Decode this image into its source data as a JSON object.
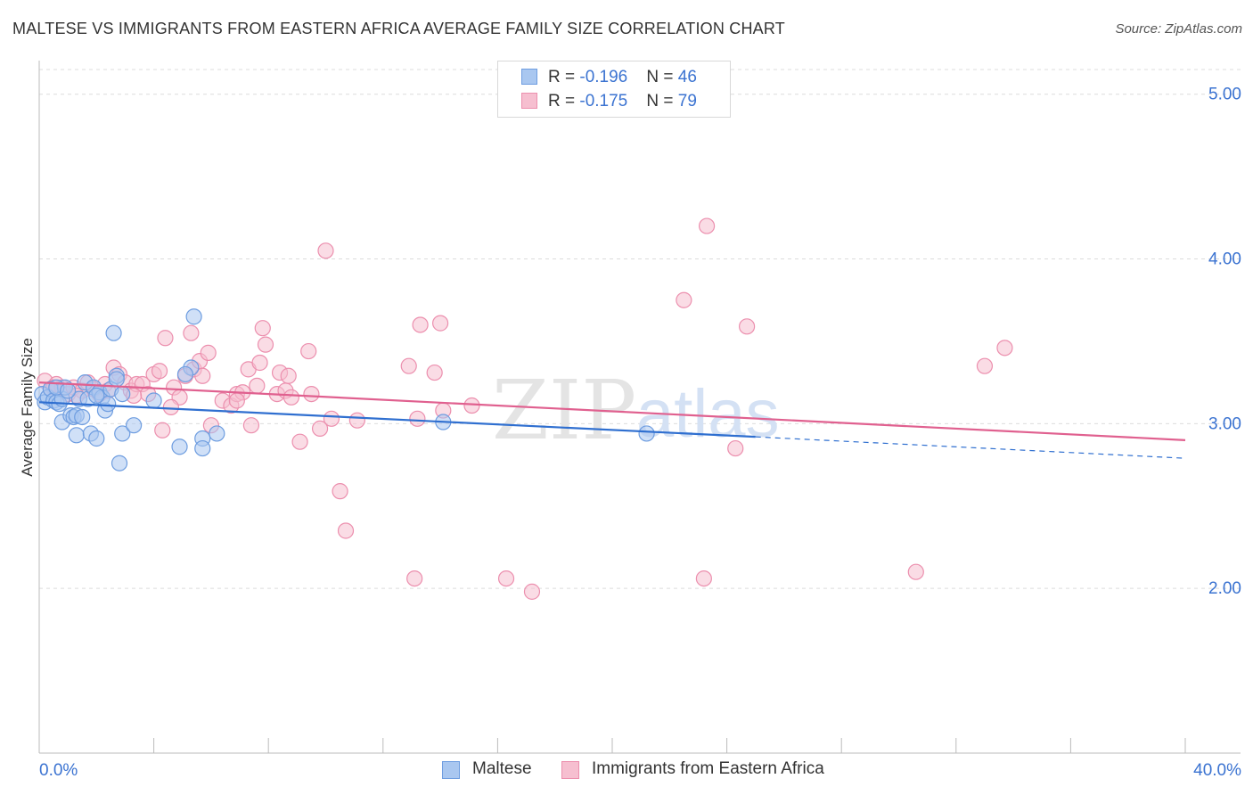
{
  "title": "MALTESE VS IMMIGRANTS FROM EASTERN AFRICA AVERAGE FAMILY SIZE CORRELATION CHART",
  "source": "Source: ZipAtlas.com",
  "legend": {
    "rows": [
      {
        "r_label": "R = ",
        "r_value": "-0.196",
        "n_label": "N = ",
        "n_value": "46"
      },
      {
        "r_label": "R = ",
        "r_value": "-0.175",
        "n_label": "N = ",
        "n_value": "79"
      }
    ]
  },
  "watermark": {
    "zip": "ZIP",
    "atlas": "atlas"
  },
  "colors": {
    "maltese_fill": "#a9c7f0",
    "maltese_stroke": "#6e9de0",
    "maltese_line": "#2f6fd0",
    "eafrica_fill": "#f6bfd0",
    "eafrica_stroke": "#ec8fae",
    "eafrica_line": "#e0608f",
    "axis_text": "#3b73d1",
    "grid": "#dcdcdc"
  },
  "chart_data": {
    "type": "scatter",
    "title": "MALTESE VS IMMIGRANTS FROM EASTERN AFRICA AVERAGE FAMILY SIZE CORRELATION CHART",
    "xlabel": "",
    "ylabel": "Average Family Size",
    "x_unit": "percent",
    "xlim": [
      0,
      40
    ],
    "ylim": [
      1.0,
      5.15
    ],
    "x_tick_labels": [
      "0.0%",
      "40.0%"
    ],
    "y_ticks": [
      2.0,
      3.0,
      4.0,
      5.0
    ],
    "y_tick_labels": [
      "2.00",
      "3.00",
      "4.00",
      "5.00"
    ],
    "grid": "horizontal dashed",
    "legend_position": "top-center and bottom",
    "series": [
      {
        "name": "Maltese",
        "r": -0.196,
        "n": 46,
        "trend": {
          "x0": 0,
          "y0": 3.13,
          "x1": 25,
          "y1": 2.92,
          "dashed_to_x": 40,
          "dashed_to_y": 2.79
        },
        "points": [
          [
            0.1,
            3.18
          ],
          [
            0.2,
            3.13
          ],
          [
            0.3,
            3.16
          ],
          [
            0.4,
            3.21
          ],
          [
            0.5,
            3.14
          ],
          [
            0.6,
            3.13
          ],
          [
            0.7,
            3.12
          ],
          [
            0.8,
            3.15
          ],
          [
            0.8,
            3.01
          ],
          [
            0.9,
            3.22
          ],
          [
            1.1,
            3.05
          ],
          [
            1.2,
            3.04
          ],
          [
            1.3,
            3.05
          ],
          [
            1.3,
            2.93
          ],
          [
            1.4,
            3.15
          ],
          [
            1.5,
            3.04
          ],
          [
            1.6,
            3.25
          ],
          [
            1.7,
            3.15
          ],
          [
            1.8,
            2.94
          ],
          [
            1.9,
            3.22
          ],
          [
            2.0,
            2.91
          ],
          [
            2.1,
            3.19
          ],
          [
            2.2,
            3.16
          ],
          [
            2.3,
            3.08
          ],
          [
            2.4,
            3.12
          ],
          [
            2.5,
            3.21
          ],
          [
            2.6,
            3.55
          ],
          [
            2.7,
            3.29
          ],
          [
            2.7,
            3.27
          ],
          [
            2.8,
            2.76
          ],
          [
            2.9,
            3.18
          ],
          [
            2.9,
            2.94
          ],
          [
            3.3,
            2.99
          ],
          [
            4.0,
            3.14
          ],
          [
            4.9,
            2.86
          ],
          [
            5.3,
            3.34
          ],
          [
            5.1,
            3.3
          ],
          [
            5.4,
            3.65
          ],
          [
            5.7,
            2.91
          ],
          [
            5.7,
            2.85
          ],
          [
            6.2,
            2.94
          ],
          [
            14.1,
            3.01
          ],
          [
            21.2,
            2.94
          ],
          [
            0.6,
            3.22
          ],
          [
            1.0,
            3.2
          ],
          [
            2.0,
            3.17
          ]
        ]
      },
      {
        "name": "Immigrants from Eastern Africa",
        "r": -0.175,
        "n": 79,
        "trend": {
          "x0": 0,
          "y0": 3.25,
          "x1": 40,
          "y1": 2.9
        },
        "points": [
          [
            0.2,
            3.26
          ],
          [
            0.4,
            3.21
          ],
          [
            0.6,
            3.24
          ],
          [
            0.8,
            3.22
          ],
          [
            1.0,
            3.18
          ],
          [
            1.2,
            3.22
          ],
          [
            1.5,
            3.2
          ],
          [
            1.7,
            3.25
          ],
          [
            1.9,
            3.21
          ],
          [
            2.1,
            3.18
          ],
          [
            2.3,
            3.24
          ],
          [
            2.6,
            3.34
          ],
          [
            2.8,
            3.3
          ],
          [
            3.0,
            3.25
          ],
          [
            3.2,
            3.2
          ],
          [
            3.4,
            3.24
          ],
          [
            3.6,
            3.24
          ],
          [
            3.8,
            3.18
          ],
          [
            4.0,
            3.3
          ],
          [
            4.2,
            3.32
          ],
          [
            4.3,
            2.96
          ],
          [
            4.4,
            3.52
          ],
          [
            4.7,
            3.22
          ],
          [
            4.9,
            3.16
          ],
          [
            5.1,
            3.29
          ],
          [
            5.3,
            3.55
          ],
          [
            5.4,
            3.33
          ],
          [
            5.6,
            3.38
          ],
          [
            5.7,
            3.29
          ],
          [
            5.9,
            3.43
          ],
          [
            6.0,
            2.99
          ],
          [
            6.4,
            3.14
          ],
          [
            6.7,
            3.11
          ],
          [
            6.9,
            3.18
          ],
          [
            7.1,
            3.19
          ],
          [
            7.3,
            3.33
          ],
          [
            7.4,
            2.99
          ],
          [
            7.6,
            3.23
          ],
          [
            7.7,
            3.37
          ],
          [
            7.8,
            3.58
          ],
          [
            7.9,
            3.48
          ],
          [
            8.3,
            3.18
          ],
          [
            8.4,
            3.31
          ],
          [
            8.6,
            3.2
          ],
          [
            8.7,
            3.29
          ],
          [
            8.8,
            3.16
          ],
          [
            9.1,
            2.89
          ],
          [
            9.4,
            3.44
          ],
          [
            9.5,
            3.18
          ],
          [
            9.8,
            2.97
          ],
          [
            10.0,
            4.05
          ],
          [
            10.2,
            3.03
          ],
          [
            10.5,
            2.59
          ],
          [
            10.7,
            2.35
          ],
          [
            11.1,
            3.02
          ],
          [
            12.9,
            3.35
          ],
          [
            13.1,
            2.06
          ],
          [
            13.2,
            3.03
          ],
          [
            13.3,
            3.6
          ],
          [
            13.8,
            3.31
          ],
          [
            14.1,
            3.08
          ],
          [
            14.0,
            3.61
          ],
          [
            15.1,
            3.11
          ],
          [
            16.3,
            2.06
          ],
          [
            17.2,
            1.98
          ],
          [
            22.5,
            3.75
          ],
          [
            23.3,
            4.2
          ],
          [
            23.2,
            2.06
          ],
          [
            24.3,
            2.85
          ],
          [
            24.7,
            3.59
          ],
          [
            30.6,
            2.1
          ],
          [
            33.0,
            3.35
          ],
          [
            33.7,
            3.46
          ],
          [
            3.3,
            3.17
          ],
          [
            1.3,
            3.17
          ],
          [
            0.5,
            3.22
          ],
          [
            2.4,
            3.2
          ],
          [
            4.6,
            3.1
          ],
          [
            6.9,
            3.14
          ]
        ]
      }
    ]
  }
}
